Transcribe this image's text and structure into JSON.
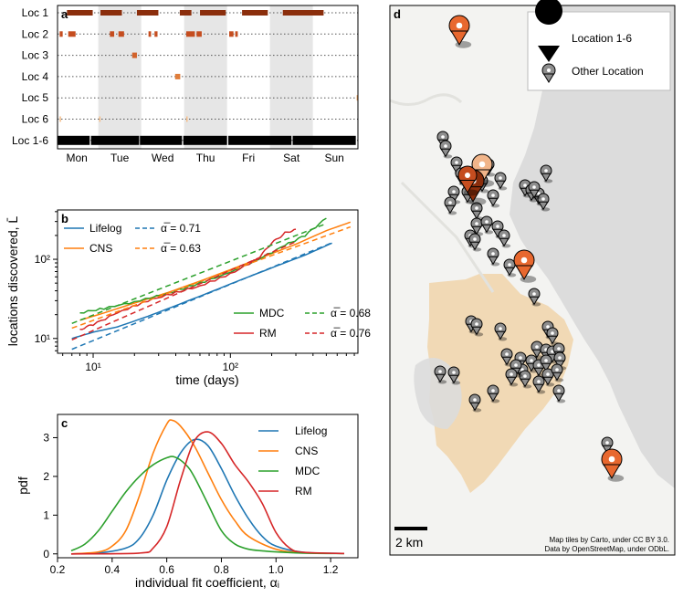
{
  "chart_data": [
    {
      "panel": "a",
      "type": "timeline",
      "rows": [
        "Loc 1",
        "Loc 2",
        "Loc 3",
        "Loc 4",
        "Loc 5",
        "Loc 6",
        "Loc 1-6"
      ],
      "days": [
        "Mon",
        "Tue",
        "Wed",
        "Thu",
        "Fri",
        "Sat",
        "Sun"
      ],
      "colors": [
        "#8b2e0c",
        "#c54d1f",
        "#d2622a",
        "#e07d3a",
        "#f0a560",
        "#f5be8a",
        "#000000"
      ],
      "visits": [
        [
          [
            0.22,
            0.82
          ],
          [
            1.0,
            1.5
          ],
          [
            1.85,
            2.35
          ],
          [
            2.85,
            3.12
          ],
          [
            3.32,
            3.92
          ],
          [
            4.3,
            4.9
          ],
          [
            5.25,
            6.2
          ]
        ],
        [
          [
            0.05,
            0.12
          ],
          [
            0.25,
            0.42
          ],
          [
            1.22,
            1.32
          ],
          [
            1.42,
            1.55
          ],
          [
            2.12,
            2.18
          ],
          [
            2.26,
            2.33
          ],
          [
            3.0,
            3.2
          ],
          [
            3.24,
            3.36
          ],
          [
            4.0,
            4.1
          ],
          [
            4.14,
            4.2
          ]
        ],
        [
          [
            1.74,
            1.85
          ]
        ],
        [
          [
            2.74,
            2.86
          ]
        ],
        [
          [
            6.97,
            7.05
          ]
        ],
        [
          [
            0.05,
            0.07
          ],
          [
            0.97,
            0.99
          ],
          [
            3.0,
            3.02
          ]
        ],
        [
          [
            0.0,
            0.75
          ],
          [
            0.78,
            1.9
          ],
          [
            1.92,
            2.9
          ],
          [
            2.93,
            3.95
          ],
          [
            3.98,
            5.45
          ],
          [
            5.48,
            6.95
          ],
          [
            7.0,
            7.07
          ]
        ]
      ],
      "shaded_days": [
        1,
        3,
        5
      ]
    },
    {
      "panel": "b",
      "type": "line",
      "scale": "log-log",
      "xlabel": "time (days)",
      "ylabel": "locations discovered, L̄",
      "xlim": [
        5.5,
        850
      ],
      "ylim": [
        6.5,
        420
      ],
      "xticks": [
        "10¹",
        "10²"
      ],
      "yticks": [
        "10¹",
        "10²"
      ],
      "series": [
        {
          "name": "Lifelog",
          "color": "#1f77b4",
          "x": [
            7,
            10,
            15,
            25,
            40,
            70,
            110,
            200,
            350,
            550
          ],
          "y": [
            10,
            12,
            14,
            19,
            26,
            38,
            52,
            78,
            113,
            160
          ]
        },
        {
          "name": "CNS",
          "color": "#ff7f0e",
          "x": [
            8,
            12,
            20,
            35,
            60,
            100,
            180,
            300,
            500,
            750
          ],
          "y": [
            17,
            21,
            28,
            38,
            53,
            74,
            110,
            155,
            230,
            295
          ]
        },
        {
          "name": "MDC",
          "color": "#2ca02c",
          "x": [
            8,
            12,
            20,
            35,
            60,
            100,
            160,
            250,
            350,
            500
          ],
          "y": [
            21,
            24,
            29,
            37,
            50,
            68,
            100,
            150,
            200,
            330
          ]
        },
        {
          "name": "RM",
          "color": "#d62728",
          "x": [
            8,
            10,
            15,
            25,
            40,
            60,
            100,
            160,
            200,
            250,
            300
          ],
          "y": [
            13,
            15,
            21,
            30,
            38,
            46,
            65,
            103,
            160,
            215,
            240
          ]
        }
      ],
      "fits": [
        {
          "name": "α̅ = 0.71",
          "color": "#1f77b4",
          "alpha": 0.71,
          "x": [
            7,
            550
          ],
          "y0": 7.3
        },
        {
          "name": "α̅ = 0.63",
          "color": "#ff7f0e",
          "alpha": 0.63,
          "x": [
            7,
            750
          ],
          "y0": 13.5
        },
        {
          "name": "α̅ = 0.68",
          "color": "#2ca02c",
          "alpha": 0.68,
          "x": [
            7,
            500
          ],
          "y0": 15.5
        },
        {
          "name": "α̅ = 0.76",
          "color": "#d62728",
          "alpha": 0.76,
          "x": [
            7,
            300
          ],
          "y0": 9.6
        }
      ],
      "legend_top": {
        "series": [
          "Lifelog",
          "CNS"
        ],
        "fits": [
          "α̅ = 0.71",
          "α̅ = 0.63"
        ]
      },
      "legend_bottom": {
        "series": [
          "MDC",
          "RM"
        ],
        "fits": [
          "α̅ = 0.68",
          "α̅ = 0.76"
        ]
      }
    },
    {
      "panel": "c",
      "type": "line",
      "xlabel": "individual fit coefficient, αᵢ",
      "ylabel": "pdf",
      "xlim": [
        0.2,
        1.3
      ],
      "ylim": [
        -0.1,
        3.6
      ],
      "xticks": [
        0.2,
        0.4,
        0.6,
        0.8,
        1.0,
        1.2
      ],
      "yticks": [
        0,
        1,
        2,
        3
      ],
      "series": [
        {
          "name": "Lifelog",
          "color": "#1f77b4",
          "x": [
            0.25,
            0.35,
            0.45,
            0.5,
            0.55,
            0.6,
            0.65,
            0.7,
            0.75,
            0.8,
            0.85,
            0.9,
            0.95,
            1.0,
            1.1,
            1.25
          ],
          "y": [
            0.0,
            0.02,
            0.15,
            0.4,
            1.0,
            1.9,
            2.6,
            2.95,
            2.8,
            2.2,
            1.5,
            0.9,
            0.45,
            0.2,
            0.04,
            0.01
          ]
        },
        {
          "name": "CNS",
          "color": "#ff7f0e",
          "x": [
            0.25,
            0.35,
            0.4,
            0.45,
            0.5,
            0.55,
            0.6,
            0.62,
            0.65,
            0.7,
            0.75,
            0.8,
            0.85,
            0.9,
            1.0,
            1.1,
            1.25
          ],
          "y": [
            0.0,
            0.05,
            0.2,
            0.6,
            1.5,
            2.6,
            3.35,
            3.45,
            3.3,
            2.8,
            2.1,
            1.4,
            0.85,
            0.45,
            0.12,
            0.03,
            0.01
          ]
        },
        {
          "name": "MDC",
          "color": "#2ca02c",
          "x": [
            0.25,
            0.3,
            0.35,
            0.4,
            0.45,
            0.5,
            0.55,
            0.6,
            0.63,
            0.67,
            0.7,
            0.75,
            0.8,
            0.85,
            0.9,
            0.95,
            1.0,
            1.1,
            1.25
          ],
          "y": [
            0.08,
            0.25,
            0.6,
            1.1,
            1.6,
            2.0,
            2.3,
            2.48,
            2.5,
            2.3,
            2.0,
            1.3,
            0.6,
            0.25,
            0.12,
            0.08,
            0.05,
            0.02,
            0.01
          ]
        },
        {
          "name": "RM",
          "color": "#d62728",
          "x": [
            0.25,
            0.5,
            0.55,
            0.6,
            0.65,
            0.7,
            0.75,
            0.8,
            0.85,
            0.9,
            0.95,
            1.0,
            1.05,
            1.1,
            1.25
          ],
          "y": [
            0.0,
            0.02,
            0.15,
            0.7,
            1.9,
            2.9,
            3.15,
            2.85,
            2.3,
            1.85,
            1.3,
            0.55,
            0.15,
            0.04,
            0.01
          ]
        }
      ]
    }
  ],
  "panels": {
    "a": "a",
    "b": "b",
    "c": "c",
    "d": "d"
  },
  "map": {
    "legend": {
      "primary": "Location 1-6",
      "secondary": "Other Location"
    },
    "scale_label": "2 km",
    "attribution": [
      "Map tiles by Carto, under CC BY 3.0.",
      "Data by OpenStreetMap, under ODbL."
    ],
    "colors": {
      "land": "#f3f3f1",
      "water": "#dcdcdc",
      "city": "#f1d9b5",
      "grey_pin": "#8e8e8e",
      "dark_pin": "#000000"
    }
  }
}
